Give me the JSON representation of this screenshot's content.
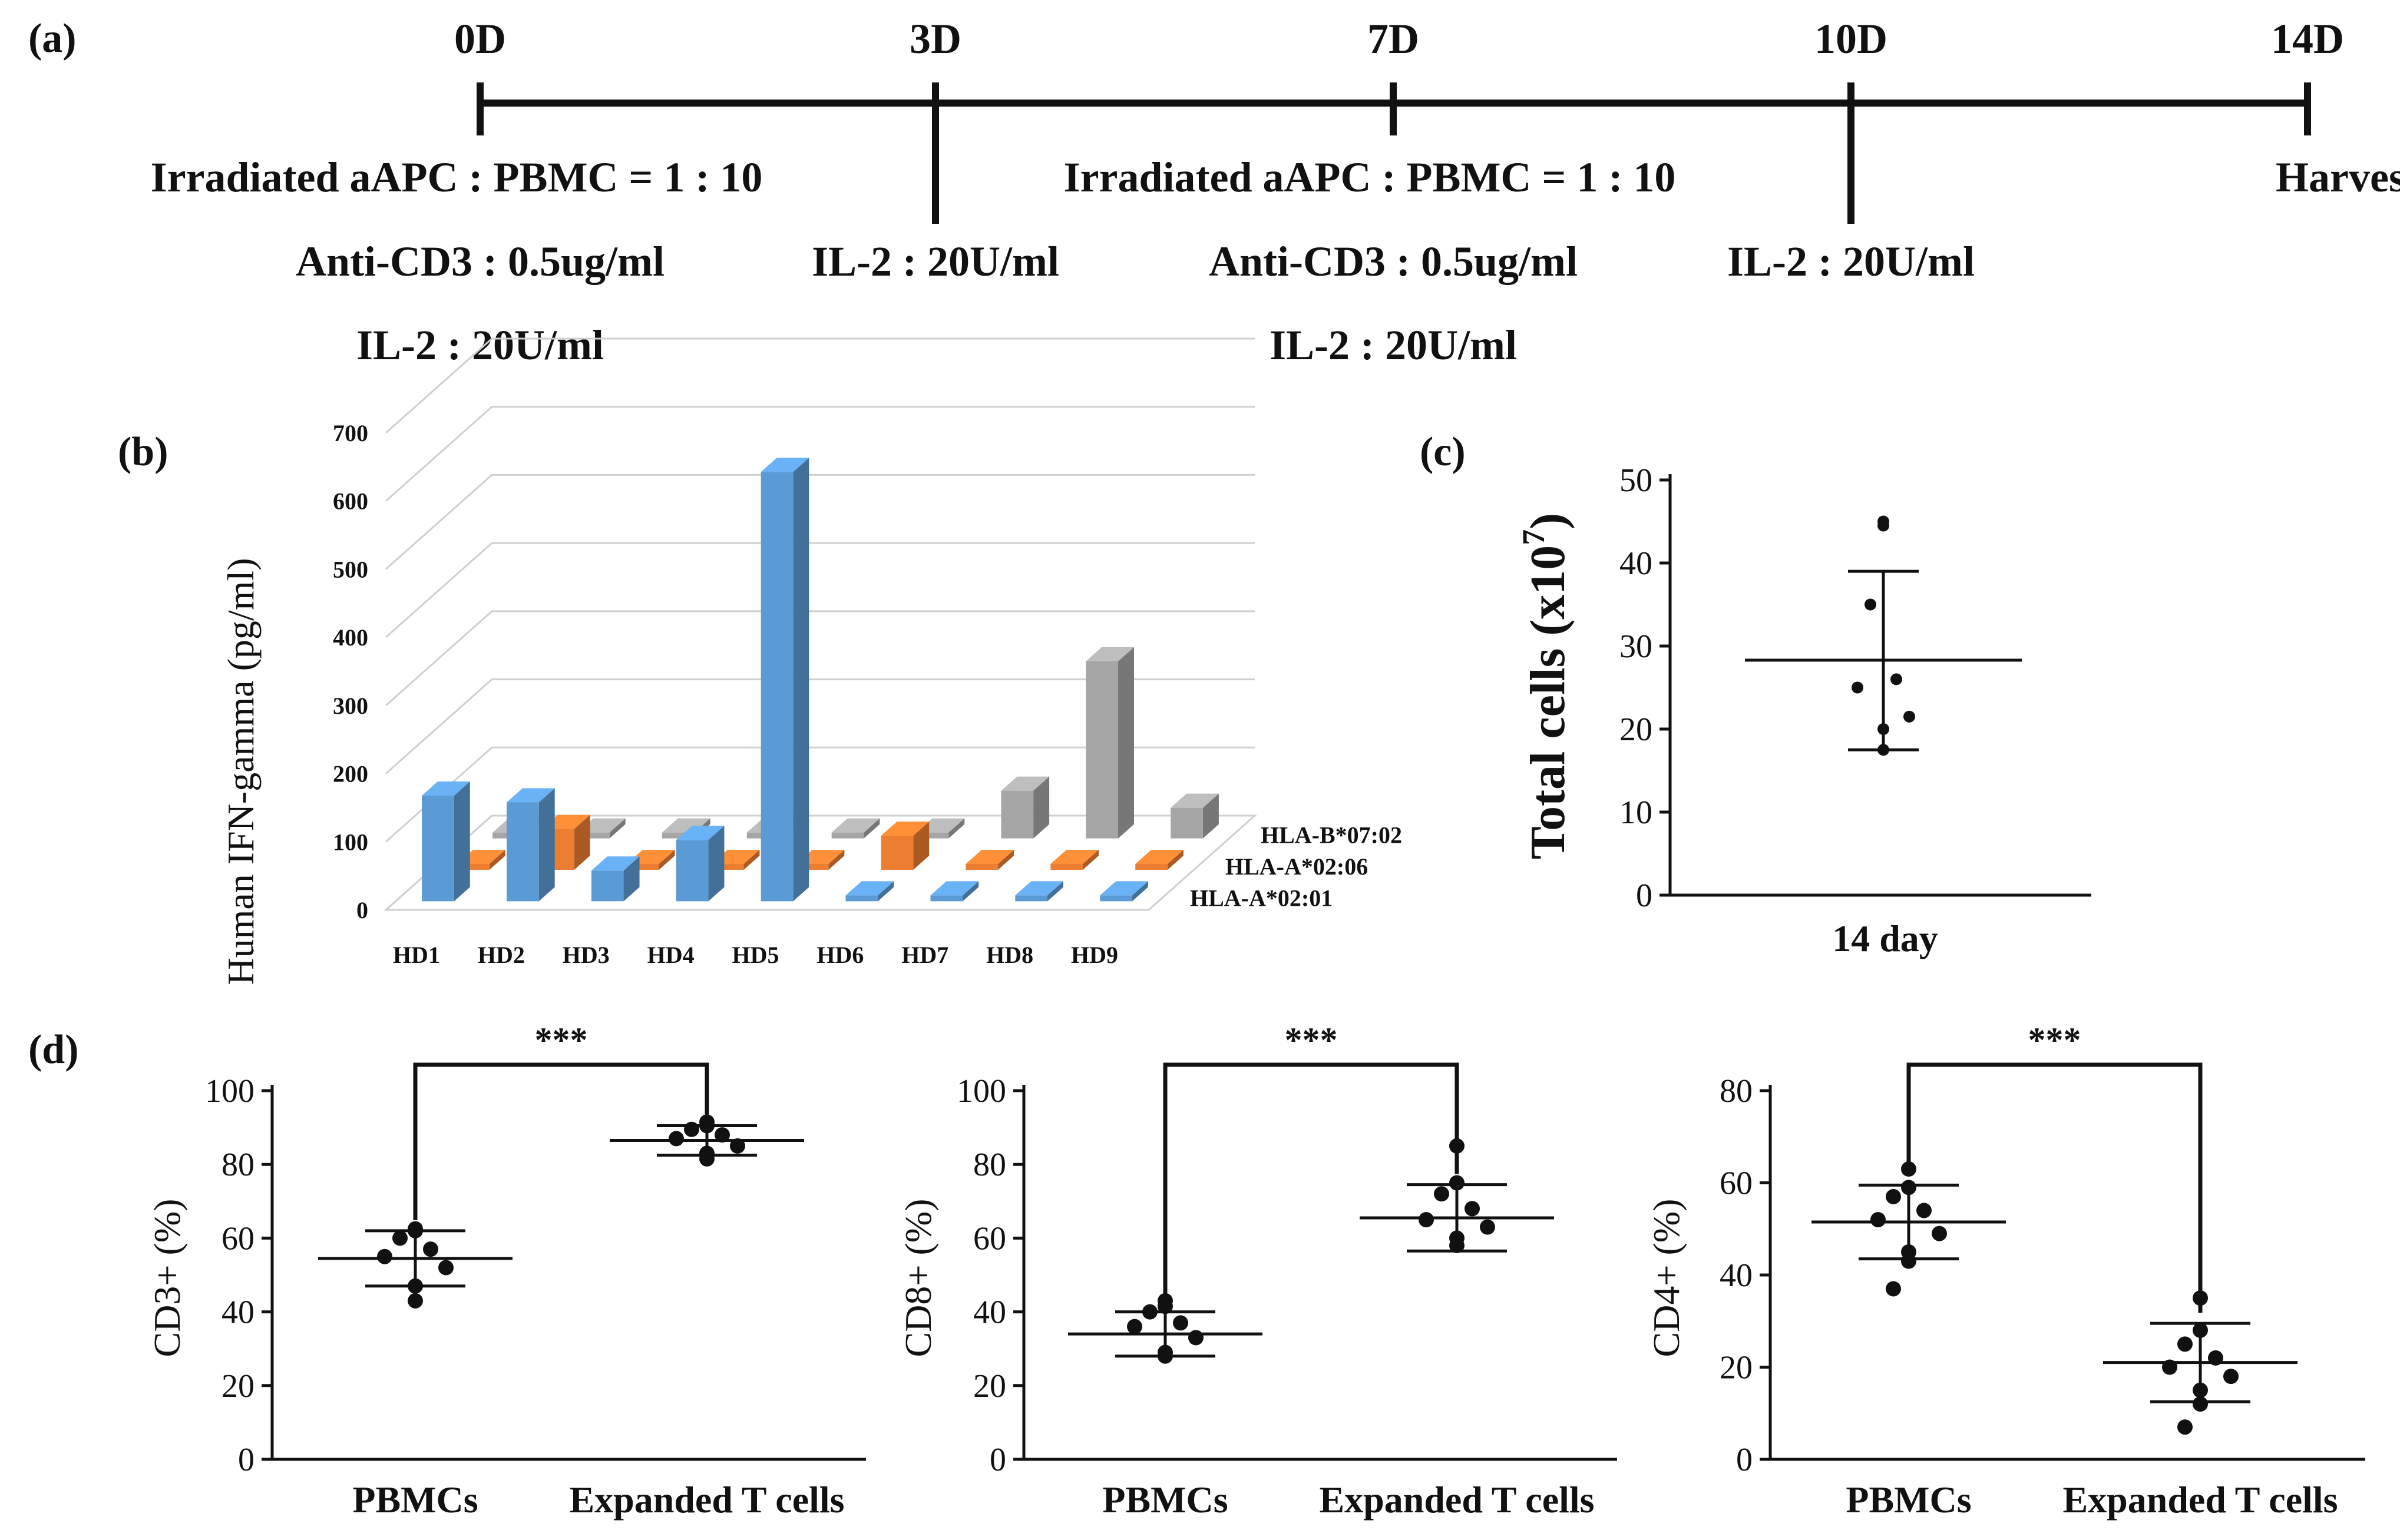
{
  "panels": {
    "a": "(a)",
    "b": "(b)",
    "c": "(c)",
    "d": "(d)"
  },
  "timeline": {
    "days": [
      "0D",
      "3D",
      "7D",
      "10D",
      "14D"
    ],
    "day_values": [
      0,
      3,
      7,
      10,
      14
    ],
    "notes": {
      "d0": [
        "Irradiated aAPC : PBMC = 1 : 10",
        "Anti-CD3 : 0.5ug/ml",
        "IL-2 : 20U/ml"
      ],
      "d3": [
        "IL-2 : 20U/ml"
      ],
      "d7": [
        "Irradiated aAPC : PBMC = 1 : 10",
        "Anti-CD3 : 0.5ug/ml",
        "IL-2 : 20U/ml"
      ],
      "d10": [
        "IL-2 : 20U/ml"
      ],
      "d14": [
        "Harvest"
      ]
    }
  },
  "colors": {
    "blue": "#5B9BD5",
    "orange": "#ED7D31",
    "gray": "#A5A5A5",
    "ink": "#111111",
    "grid": "#cfcfcf"
  },
  "chart_data": [
    {
      "id": "b",
      "type": "bar",
      "style": "3d",
      "ylabel": "Human IFN-gamma (pg/ml)",
      "yticks": [
        0,
        100,
        200,
        300,
        400,
        500,
        600,
        700
      ],
      "ylim": [
        0,
        700
      ],
      "categories": [
        "HD1",
        "HD2",
        "HD3",
        "HD4",
        "HD5",
        "HD6",
        "HD7",
        "HD8",
        "HD9"
      ],
      "series": [
        {
          "name": "HLA-A*02:01",
          "color": "#5B9BD5",
          "values": [
            155,
            145,
            45,
            90,
            630,
            0,
            0,
            0,
            0
          ]
        },
        {
          "name": "HLA-A*02:06",
          "color": "#ED7D31",
          "values": [
            0,
            60,
            0,
            0,
            0,
            50,
            0,
            0,
            0
          ]
        },
        {
          "name": "HLA-B*07:02",
          "color": "#A5A5A5",
          "values": [
            0,
            0,
            0,
            0,
            0,
            0,
            70,
            260,
            45
          ]
        }
      ]
    },
    {
      "id": "c",
      "type": "scatter",
      "ylabel_main": "Total cells (x10",
      "ylabel_exp": "7",
      "ylabel_close": ")",
      "xlabel": "14 day",
      "yticks": [
        0,
        10,
        20,
        30,
        40,
        50
      ],
      "ylim": [
        0,
        50
      ],
      "points": [
        45,
        44.5,
        35,
        26,
        25,
        21.5,
        20,
        17.5
      ],
      "mean": 28.3,
      "sd_upper": 39,
      "sd_lower": 17.5
    },
    {
      "id": "d1",
      "type": "scatter",
      "ylabel": "CD3+ (%)",
      "categories": [
        "PBMCs",
        "Expanded T cells"
      ],
      "yticks": [
        0,
        20,
        40,
        60,
        80,
        100
      ],
      "ylim": [
        0,
        100
      ],
      "series": [
        {
          "name": "PBMCs",
          "points": [
            62.5,
            62,
            60,
            57,
            55,
            52,
            47,
            43
          ],
          "mean": 54.5,
          "sd_upper": 62,
          "sd_lower": 47
        },
        {
          "name": "Expanded T cells",
          "points": [
            91.5,
            90.5,
            89.5,
            88,
            87,
            85,
            83,
            81.5
          ],
          "mean": 86.5,
          "sd_upper": 90.5,
          "sd_lower": 82.5
        }
      ],
      "significance": "***"
    },
    {
      "id": "d2",
      "type": "scatter",
      "ylabel": "CD8+ (%)",
      "categories": [
        "PBMCs",
        "Expanded T cells"
      ],
      "yticks": [
        0,
        20,
        40,
        60,
        80,
        100
      ],
      "ylim": [
        0,
        100
      ],
      "series": [
        {
          "name": "PBMCs",
          "points": [
            43,
            41.5,
            40,
            37,
            36,
            33,
            29,
            28
          ],
          "mean": 34,
          "sd_upper": 40,
          "sd_lower": 28
        },
        {
          "name": "Expanded T cells",
          "points": [
            85,
            75,
            72,
            68,
            65,
            63,
            60,
            58
          ],
          "mean": 65.5,
          "sd_upper": 74.5,
          "sd_lower": 56.5
        }
      ],
      "significance": "***"
    },
    {
      "id": "d3",
      "type": "scatter",
      "ylabel": "CD4+ (%)",
      "categories": [
        "PBMCs",
        "Expanded T cells"
      ],
      "yticks": [
        0,
        20,
        40,
        60,
        80
      ],
      "ylim": [
        0,
        80
      ],
      "series": [
        {
          "name": "PBMCs",
          "points": [
            63,
            59,
            57,
            54,
            52,
            49,
            45,
            43,
            37
          ],
          "mean": 51.5,
          "sd_upper": 59.5,
          "sd_lower": 43.5
        },
        {
          "name": "Expanded T cells",
          "points": [
            35,
            28,
            25,
            22,
            20,
            18,
            15,
            12,
            7
          ],
          "mean": 21,
          "sd_upper": 29.5,
          "sd_lower": 12.5
        }
      ],
      "significance": "***"
    }
  ]
}
